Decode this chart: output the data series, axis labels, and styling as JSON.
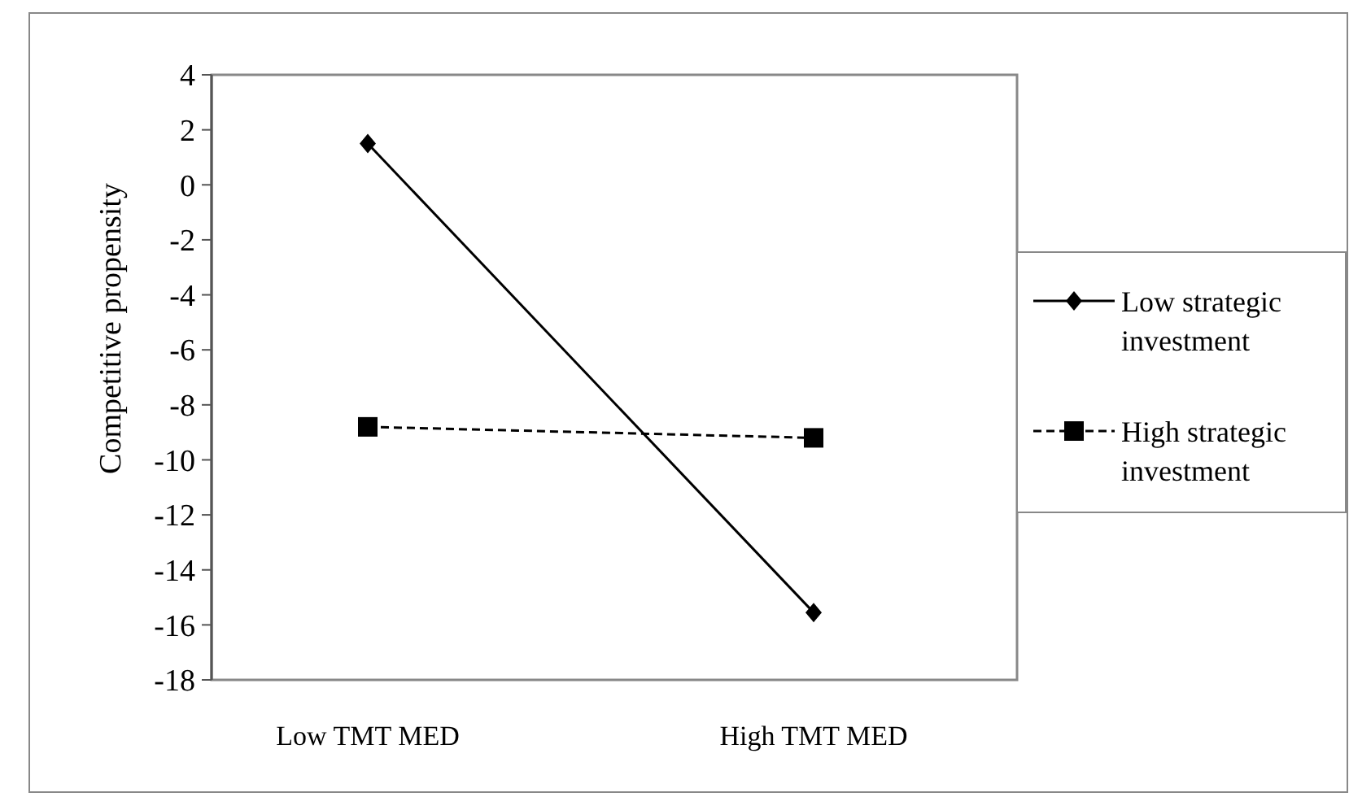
{
  "chart_data": {
    "type": "line",
    "ylabel": "Competitive propensity",
    "categories": [
      "Low TMT MED",
      "High TMT MED"
    ],
    "series": [
      {
        "name": "Low strategic investment",
        "color": "#000000",
        "values": [
          1.5,
          -15.55
        ],
        "marker": "diamond",
        "line_style": "solid"
      },
      {
        "name": "High strategic investment",
        "color": "#000000",
        "values": [
          -8.8,
          -9.2
        ],
        "marker": "square",
        "line_style": "dashed"
      }
    ],
    "ylim": [
      -18,
      4
    ],
    "yticks": [
      -18,
      -16,
      -14,
      -12,
      -10,
      -8,
      -6,
      -4,
      -2,
      0,
      2,
      4
    ],
    "grid": false,
    "legend": "right"
  }
}
